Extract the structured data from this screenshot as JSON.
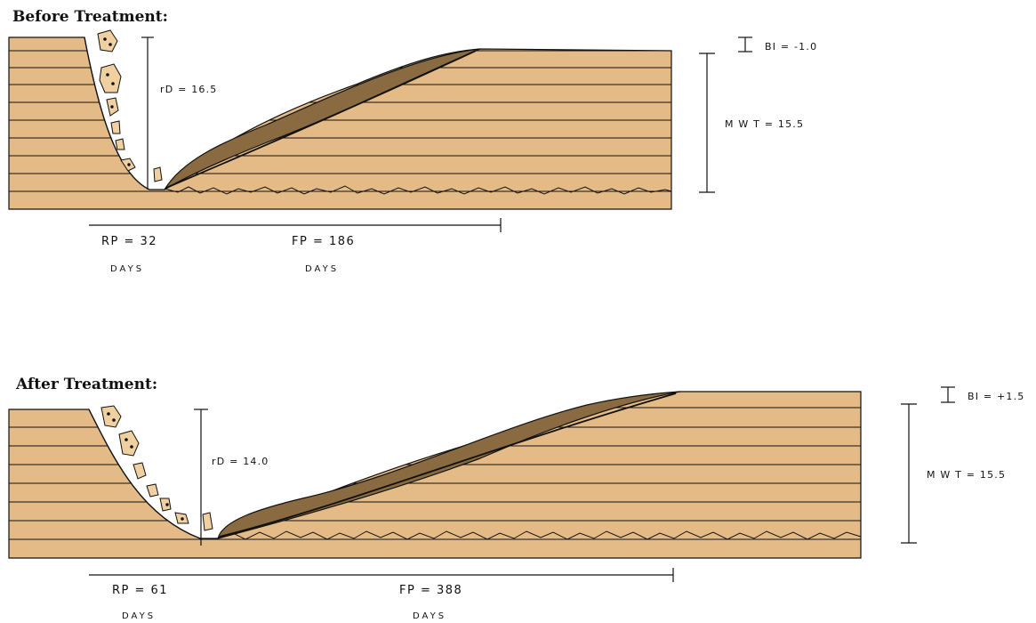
{
  "colors": {
    "soil": "#e4bb86",
    "point_bar": "#8a6a40",
    "line": "#111111",
    "rock": "#f0cfa0"
  },
  "panels": [
    {
      "title": "Before Treatment:",
      "rd_label": "rD = 16.5",
      "bi_label": "BI = -1.0",
      "mwt_label": "M W T = 15.5",
      "rp_label": "RP = 32",
      "rp_unit": "DAYS",
      "fp_label": "FP = 186",
      "fp_unit": "DAYS"
    },
    {
      "title": "After Treatment:",
      "rd_label": "rD = 14.0",
      "bi_label": "BI = +1.5",
      "mwt_label": "M W T = 15.5",
      "rp_label": "RP = 61",
      "rp_unit": "DAYS",
      "fp_label": "FP = 388",
      "fp_unit": "DAYS"
    }
  ]
}
